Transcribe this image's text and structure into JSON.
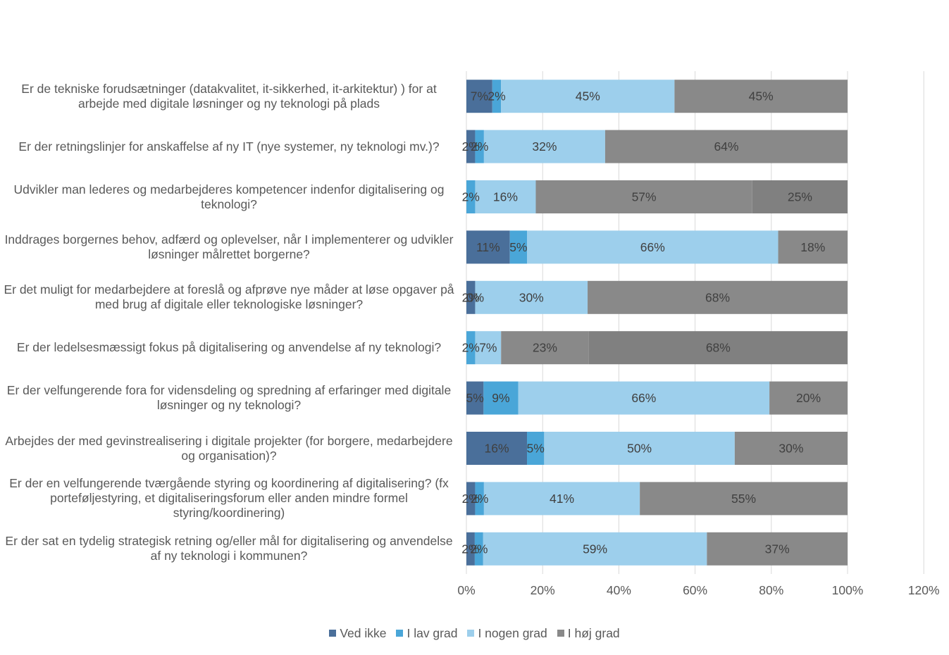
{
  "chart_data": {
    "type": "bar",
    "orientation": "horizontal",
    "stacked": true,
    "categories": [
      "Er de tekniske forudsætninger (datakvalitet, it-sikkerhed, it-arkitektur) ) for at arbejde med digitale løsninger og ny teknologi på plads",
      "Er der retningslinjer for anskaffelse af ny IT (nye systemer, ny teknologi mv.)?",
      "Udvikler man lederes og medarbejderes kompetencer indenfor digitalisering og teknologi?",
      "Inddrages borgernes behov, adfærd og oplevelser, når I implementerer og udvikler løsninger målrettet borgerne?",
      "Er det muligt for medarbejdere at foreslå og afprøve nye måder at løse opgaver på med brug af digitale eller teknologiske løsninger?",
      "Er der ledelsesmæssigt fokus på digitalisering og anvendelse af ny teknologi?",
      "Er der velfungerende fora for vidensdeling og spredning af erfaringer med digitale løsninger og ny teknologi?",
      "Arbejdes der med gevinstrealisering i digitale projekter (for borgere, medarbejdere og organisation)?",
      "Er der en velfungerende tværgående styring og koordinering af digitalisering? (fx porteføljestyring, et digitaliseringsforum eller anden mindre formel styring/koordinering)",
      "Er der sat en tydelig strategisk retning og/eller mål for digitalisering og anvendelse af ny teknologi i kommunen?"
    ],
    "series": [
      {
        "name": "Ved ikke",
        "color": "#4a6f9a",
        "values": [
          6.8,
          2.3,
          0,
          11.4,
          2.3,
          0,
          4.5,
          15.9,
          2.3,
          2.2
        ],
        "labels": [
          "7%",
          "2%",
          "",
          "11%",
          "2%",
          "",
          "5%",
          "16%",
          "2%",
          "2%"
        ]
      },
      {
        "name": "I lav grad",
        "color": "#4aa6d8",
        "values": [
          2.3,
          2.3,
          2.3,
          4.5,
          0,
          2.3,
          9.1,
          4.5,
          2.3,
          2.2
        ],
        "labels": [
          "2%",
          "2%",
          "2%",
          "5%",
          "0%",
          "2%",
          "9%",
          "5%",
          "2%",
          "2%"
        ]
      },
      {
        "name": "I nogen grad",
        "color": "#9dcfec",
        "values": [
          45.5,
          31.8,
          15.9,
          65.9,
          29.5,
          6.8,
          65.9,
          50.0,
          40.9,
          58.7
        ],
        "labels": [
          "45%",
          "32%",
          "16%",
          "66%",
          "30%",
          "7%",
          "66%",
          "50%",
          "41%",
          "59%"
        ]
      },
      {
        "name": "I høj grad",
        "color": "#898989",
        "values": [
          45.4,
          63.6,
          56.8,
          18.2,
          68.2,
          23.0,
          20.5,
          29.6,
          54.5,
          36.9
        ],
        "labels": [
          "45%",
          "64%",
          "57%",
          "18%",
          "68%",
          "23%",
          "20%",
          "30%",
          "55%",
          "37%"
        ]
      },
      {
        "name": "",
        "color": "#808080",
        "values": [
          0,
          0,
          25.0,
          0,
          0,
          67.9,
          0,
          0,
          0,
          0
        ],
        "labels": [
          "",
          "",
          "25%",
          "",
          "",
          "68%",
          "",
          "",
          "",
          ""
        ]
      }
    ],
    "xlim": [
      0,
      120
    ],
    "xticks": [
      "0%",
      "20%",
      "40%",
      "60%",
      "80%",
      "100%",
      "120%"
    ],
    "grid": true,
    "legend_position": "bottom"
  }
}
